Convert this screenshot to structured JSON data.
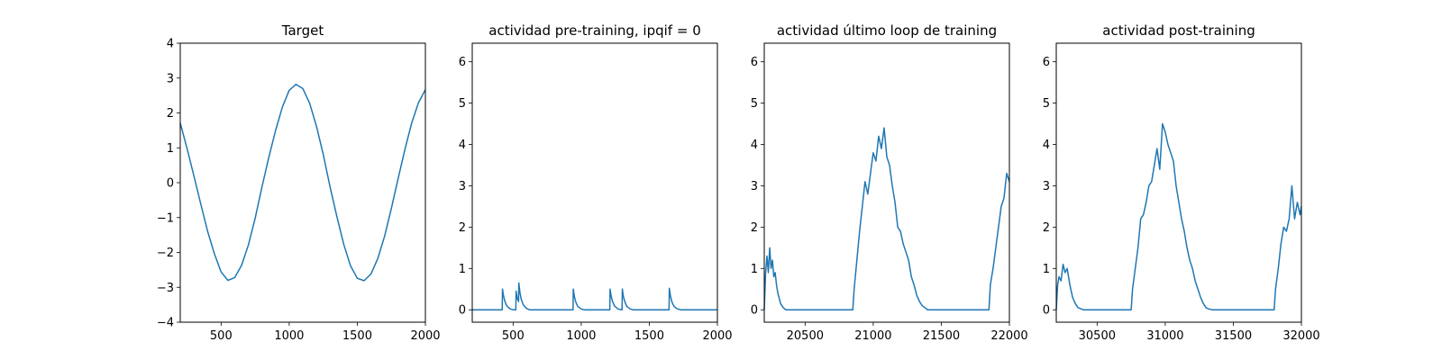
{
  "colors": {
    "series": "#1f77b4"
  },
  "chart_data": [
    {
      "type": "line",
      "title": "Target",
      "xlim": [
        200,
        2000
      ],
      "ylim": [
        -4,
        4
      ],
      "xticks": [
        500,
        1000,
        1500,
        2000
      ],
      "xticklabels": [
        "500",
        "1000",
        "1500",
        "2000"
      ],
      "yticks": [
        -4,
        -3,
        -2,
        -1,
        0,
        1,
        2,
        3,
        4
      ],
      "yticklabels": [
        "−4",
        "−3",
        "−2",
        "−1",
        "0",
        "1",
        "2",
        "3",
        "4"
      ],
      "x": [
        200,
        250,
        300,
        350,
        400,
        450,
        500,
        550,
        600,
        650,
        700,
        750,
        800,
        850,
        900,
        950,
        1000,
        1050,
        1100,
        1150,
        1200,
        1250,
        1300,
        1350,
        1400,
        1450,
        1500,
        1550,
        1600,
        1650,
        1700,
        1750,
        1800,
        1850,
        1900,
        1950,
        2000
      ],
      "y": [
        1.71,
        0.98,
        0.2,
        -0.6,
        -1.38,
        -2.03,
        -2.56,
        -2.8,
        -2.72,
        -2.37,
        -1.79,
        -1.02,
        -0.12,
        0.72,
        1.5,
        2.17,
        2.65,
        2.82,
        2.7,
        2.28,
        1.62,
        0.81,
        -0.12,
        -0.97,
        -1.76,
        -2.38,
        -2.74,
        -2.81,
        -2.62,
        -2.18,
        -1.54,
        -0.74,
        0.12,
        0.96,
        1.72,
        2.3,
        2.67
      ]
    },
    {
      "type": "line",
      "title": "actividad pre-training, ipqif = 0",
      "xlim": [
        200,
        2000
      ],
      "ylim": [
        -0.3,
        6.45
      ],
      "xticks": [
        500,
        1000,
        1500,
        2000
      ],
      "xticklabels": [
        "500",
        "1000",
        "1500",
        "2000"
      ],
      "yticks": [
        0,
        1,
        2,
        3,
        4,
        5,
        6
      ],
      "yticklabels": [
        "0",
        "1",
        "2",
        "3",
        "4",
        "5",
        "6"
      ],
      "x": [
        200,
        420,
        422,
        430,
        440,
        450,
        460,
        480,
        500,
        520,
        522,
        530,
        540,
        542,
        550,
        560,
        575,
        600,
        620,
        940,
        942,
        950,
        960,
        975,
        1000,
        1020,
        1210,
        1212,
        1220,
        1230,
        1245,
        1270,
        1300,
        1302,
        1310,
        1320,
        1335,
        1360,
        1380,
        1645,
        1647,
        1655,
        1665,
        1680,
        1700,
        1730,
        2000
      ],
      "y": [
        0,
        0,
        0.5,
        0.33,
        0.2,
        0.12,
        0.07,
        0.02,
        0,
        0,
        0.45,
        0.28,
        0.2,
        0.65,
        0.42,
        0.25,
        0.12,
        0.03,
        0,
        0,
        0.5,
        0.32,
        0.19,
        0.08,
        0.02,
        0,
        0,
        0.5,
        0.33,
        0.2,
        0.09,
        0.02,
        0,
        0.5,
        0.32,
        0.2,
        0.08,
        0.02,
        0,
        0,
        0.52,
        0.34,
        0.2,
        0.09,
        0.03,
        0,
        0
      ]
    },
    {
      "type": "line",
      "title": "actividad último loop de training",
      "xlim": [
        20200,
        22000
      ],
      "ylim": [
        -0.3,
        6.45
      ],
      "xticks": [
        20500,
        21000,
        21500,
        22000
      ],
      "xticklabels": [
        "20500",
        "21000",
        "21500",
        "22000"
      ],
      "yticks": [
        0,
        1,
        2,
        3,
        4,
        5,
        6
      ],
      "yticklabels": [
        "0",
        "1",
        "2",
        "3",
        "4",
        "5",
        "6"
      ],
      "x": [
        20200,
        20210,
        20220,
        20230,
        20240,
        20250,
        20260,
        20270,
        20280,
        20290,
        20300,
        20320,
        20340,
        20360,
        20400,
        20850,
        20860,
        20880,
        20900,
        20920,
        20940,
        20960,
        20980,
        21000,
        21020,
        21040,
        21060,
        21080,
        21100,
        21120,
        21140,
        21160,
        21180,
        21200,
        21220,
        21240,
        21260,
        21280,
        21300,
        21320,
        21340,
        21360,
        21380,
        21400,
        21420,
        21450,
        21500,
        21850,
        21860,
        21880,
        21900,
        21920,
        21940,
        21960,
        21980,
        22000
      ],
      "y": [
        0,
        0.9,
        1.3,
        0.9,
        1.5,
        1.0,
        1.2,
        0.8,
        0.9,
        0.6,
        0.4,
        0.15,
        0.05,
        0,
        0,
        0,
        0.5,
        1.2,
        1.9,
        2.5,
        3.1,
        2.8,
        3.3,
        3.8,
        3.6,
        4.2,
        3.9,
        4.4,
        3.7,
        3.5,
        3.0,
        2.6,
        2.0,
        1.9,
        1.6,
        1.4,
        1.2,
        0.8,
        0.6,
        0.35,
        0.2,
        0.1,
        0.05,
        0,
        0,
        0,
        0,
        0,
        0.6,
        1.0,
        1.5,
        2.0,
        2.5,
        2.7,
        3.3,
        3.1
      ]
    },
    {
      "type": "line",
      "title": "actividad post-training",
      "xlim": [
        30200,
        32000
      ],
      "ylim": [
        -0.3,
        6.45
      ],
      "xticks": [
        30500,
        31000,
        31500,
        32000
      ],
      "xticklabels": [
        "30500",
        "31000",
        "31500",
        "32000"
      ],
      "yticks": [
        0,
        1,
        2,
        3,
        4,
        5,
        6
      ],
      "yticklabels": [
        "0",
        "1",
        "2",
        "3",
        "4",
        "5",
        "6"
      ],
      "x": [
        30200,
        30210,
        30220,
        30235,
        30250,
        30265,
        30280,
        30300,
        30320,
        30340,
        30360,
        30400,
        30750,
        30760,
        30780,
        30800,
        30820,
        30840,
        30860,
        30880,
        30900,
        30920,
        30940,
        30960,
        30980,
        31000,
        31020,
        31040,
        31060,
        31080,
        31100,
        31120,
        31140,
        31160,
        31180,
        31200,
        31220,
        31240,
        31260,
        31280,
        31300,
        31320,
        31350,
        31400,
        31800,
        31810,
        31830,
        31850,
        31870,
        31890,
        31910,
        31930,
        31950,
        31970,
        31990,
        32000
      ],
      "y": [
        0,
        0.6,
        0.8,
        0.7,
        1.1,
        0.9,
        1.0,
        0.6,
        0.3,
        0.15,
        0.05,
        0,
        0,
        0.5,
        1.0,
        1.5,
        2.2,
        2.3,
        2.6,
        3.0,
        3.1,
        3.5,
        3.9,
        3.4,
        4.5,
        4.3,
        4.0,
        3.8,
        3.6,
        3.0,
        2.6,
        2.2,
        1.9,
        1.5,
        1.2,
        1.0,
        0.7,
        0.5,
        0.3,
        0.15,
        0.05,
        0.02,
        0,
        0,
        0,
        0.5,
        1.0,
        1.6,
        2.0,
        1.9,
        2.2,
        3.0,
        2.2,
        2.6,
        2.3,
        2.5
      ]
    }
  ]
}
